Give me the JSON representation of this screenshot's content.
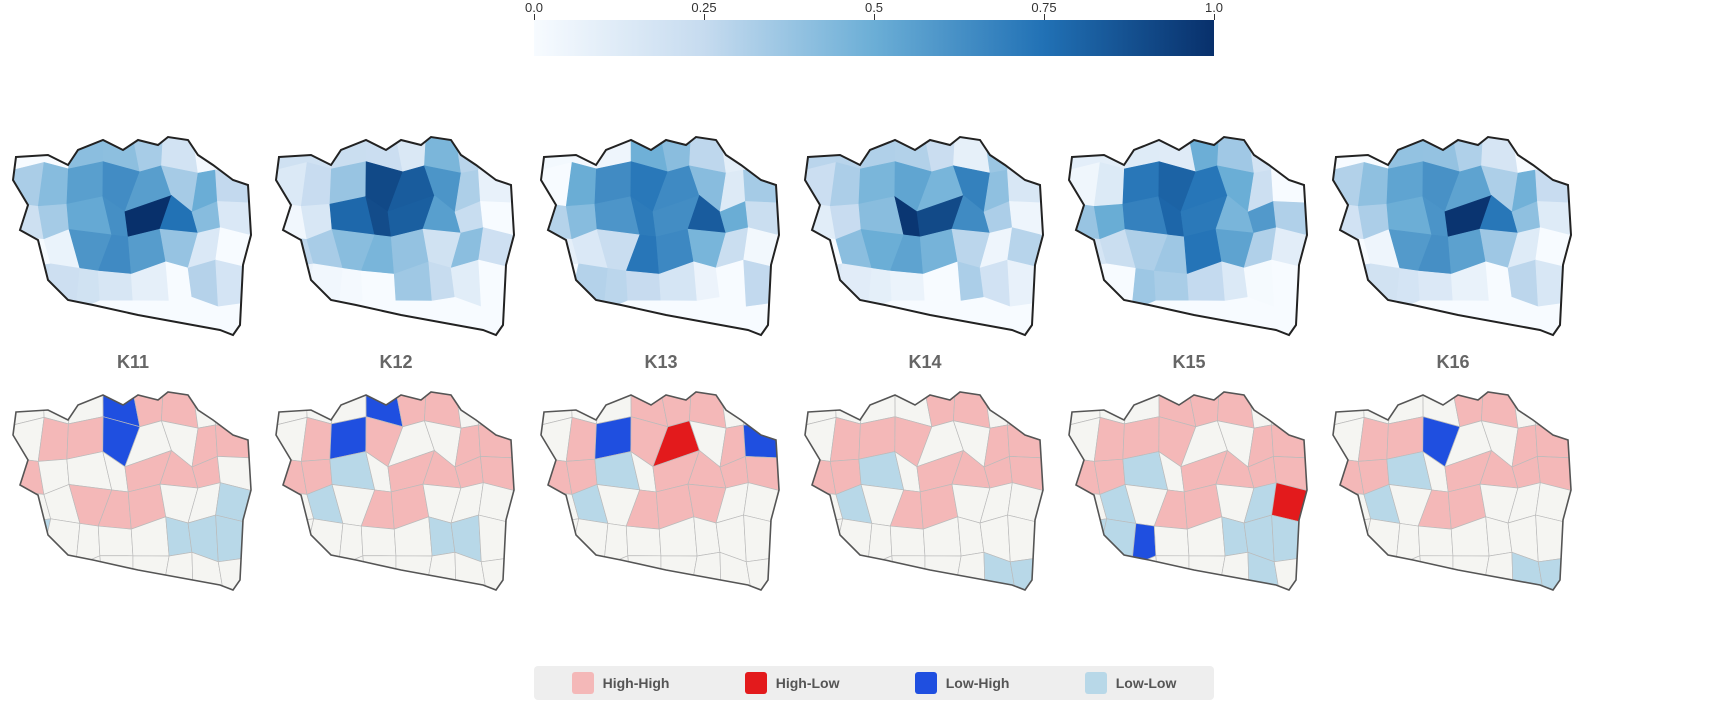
{
  "colorbar": {
    "ticks": [
      "0.0",
      "0.25",
      "0.5",
      "0.75",
      "1.0"
    ],
    "tick_values": [
      0,
      0.25,
      0.5,
      0.75,
      1.0
    ],
    "colors": [
      "#f7fbff",
      "#c6dbef",
      "#6baed6",
      "#2171b5",
      "#08306b"
    ]
  },
  "panels": [
    {
      "label": "K11",
      "seed": 11,
      "lisa": {
        "hh": [
          4,
          5,
          9,
          10,
          14,
          15,
          16,
          20,
          21,
          22,
          26,
          27,
          28
        ],
        "hl": [],
        "lh": [
          3,
          11
        ],
        "ll": [
          31,
          32,
          37,
          38,
          39
        ]
      }
    },
    {
      "label": "K12",
      "seed": 12,
      "lisa": {
        "hh": [
          4,
          5,
          9,
          10,
          11,
          14,
          15,
          16,
          17,
          20,
          21,
          22,
          23,
          27,
          28
        ],
        "hl": [],
        "lh": [
          3,
          10
        ],
        "ll": [
          18,
          25,
          37,
          38
        ]
      }
    },
    {
      "label": "K13",
      "seed": 13,
      "lisa": {
        "hh": [
          3,
          4,
          5,
          9,
          10,
          11,
          14,
          15,
          16,
          17,
          20,
          21,
          22,
          23,
          27,
          28,
          29
        ],
        "hl": [
          12
        ],
        "lh": [
          10,
          15
        ],
        "ll": [
          18,
          25
        ]
      }
    },
    {
      "label": "K14",
      "seed": 14,
      "lisa": {
        "hh": [
          4,
          5,
          9,
          10,
          11,
          14,
          15,
          16,
          17,
          20,
          21,
          22,
          23,
          27,
          28
        ],
        "hl": [],
        "lh": [],
        "ll": [
          18,
          25,
          40,
          41,
          46,
          47
        ]
      }
    },
    {
      "label": "K15",
      "seed": 15,
      "lisa": {
        "hh": [
          3,
          4,
          5,
          9,
          10,
          11,
          14,
          15,
          16,
          17,
          20,
          21,
          22,
          23,
          27,
          28
        ],
        "hl": [
          31
        ],
        "lh": [
          34
        ],
        "ll": [
          18,
          25,
          30,
          32,
          33,
          37,
          38,
          39,
          40,
          46
        ]
      }
    },
    {
      "label": "K16",
      "seed": 16,
      "lisa": {
        "hh": [
          4,
          5,
          9,
          10,
          14,
          15,
          16,
          17,
          20,
          21,
          22,
          23,
          27,
          28
        ],
        "hl": [],
        "lh": [
          11
        ],
        "ll": [
          18,
          25,
          40,
          41,
          46,
          47
        ]
      }
    }
  ],
  "legend": [
    {
      "label": "High-High",
      "color": "#f4b8b8"
    },
    {
      "label": "High-Low",
      "color": "#e31a1c"
    },
    {
      "label": "Low-High",
      "color": "#1f4fe0"
    },
    {
      "label": "Low-Low",
      "color": "#b8d8e8"
    }
  ],
  "colors": {
    "not_significant": "#f5f5f2",
    "outline": "#222222",
    "border_grey": "#bbbbbb"
  }
}
